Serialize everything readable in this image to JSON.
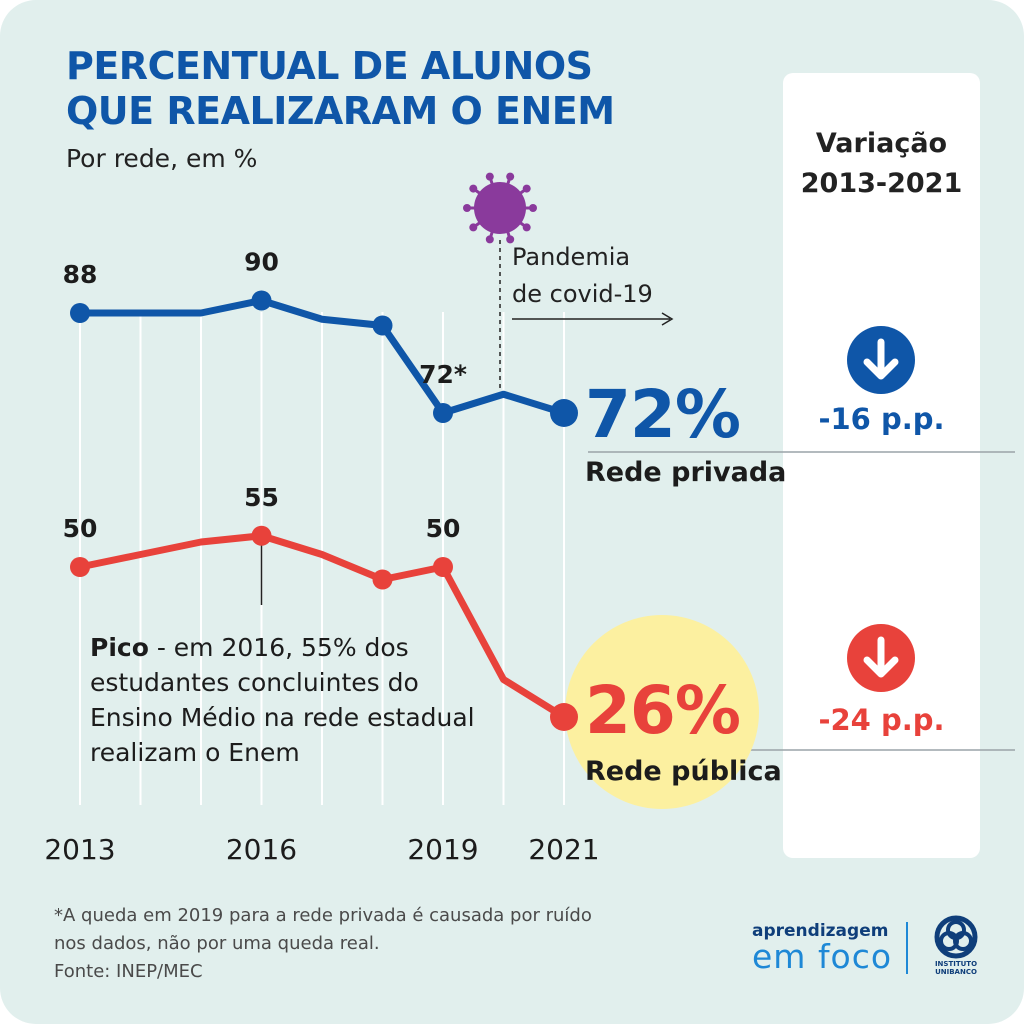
{
  "title_lines": [
    "PERCENTUAL DE ALUNOS",
    "QUE REALIZARAM O ENEM"
  ],
  "subtitle": "Por rede, em %",
  "variation_panel": {
    "heading_lines": [
      "Variação",
      "2013-2021"
    ],
    "items": [
      {
        "value": "-16 p.p.",
        "color": "#0f56a8",
        "icon": "down-arrow-icon"
      },
      {
        "value": "-24 p.p.",
        "color": "#e8423b",
        "icon": "down-arrow-icon"
      }
    ]
  },
  "annotations": {
    "pandemic_lines": [
      "Pandemia",
      "de covid-19"
    ],
    "pandemic_icon": "virus-icon",
    "pandemic_icon_color": "#8a3a9c",
    "peak_bold": "Pico",
    "peak_text": " - em 2016, 55% dos estudantes concluintes do Ensino Médio na rede estadual realizam o Enem",
    "highlight_color": "#fcf0a0"
  },
  "footnote_lines": [
    "*A queda em 2019 para a rede privada é causada por ruído",
    "nos dados, não por uma queda real.",
    "Fonte: INEP/MEC"
  ],
  "logo": {
    "line1": "aprendizagem",
    "line2": "em foco",
    "brand_lines": [
      "INSTITUTO",
      "UNIBANCO"
    ]
  },
  "chart_data": {
    "type": "line",
    "x": [
      2013,
      2014,
      2015,
      2016,
      2017,
      2018,
      2019,
      2020,
      2021
    ],
    "x_tick_labels": [
      "2013",
      "2016",
      "2019",
      "2021"
    ],
    "x_tick_values": [
      2013,
      2016,
      2019,
      2021
    ],
    "grid": "vertical",
    "series": [
      {
        "name": "Rede privada",
        "color": "#0f56a8",
        "values": [
          88,
          88,
          88,
          90,
          87,
          86,
          72,
          75,
          72
        ],
        "point_labels": {
          "0": "88",
          "3": "90",
          "6": "72*"
        },
        "markers": [
          0,
          3,
          5,
          6,
          8
        ],
        "end_label": "72%"
      },
      {
        "name": "Rede pública",
        "color": "#e8423b",
        "values": [
          50,
          52,
          54,
          55,
          52,
          48,
          50,
          32,
          26
        ],
        "point_labels": {
          "0": "50",
          "3": "55",
          "6": "50"
        },
        "markers": [
          0,
          3,
          5,
          6,
          8
        ],
        "end_label": "26%"
      }
    ]
  }
}
